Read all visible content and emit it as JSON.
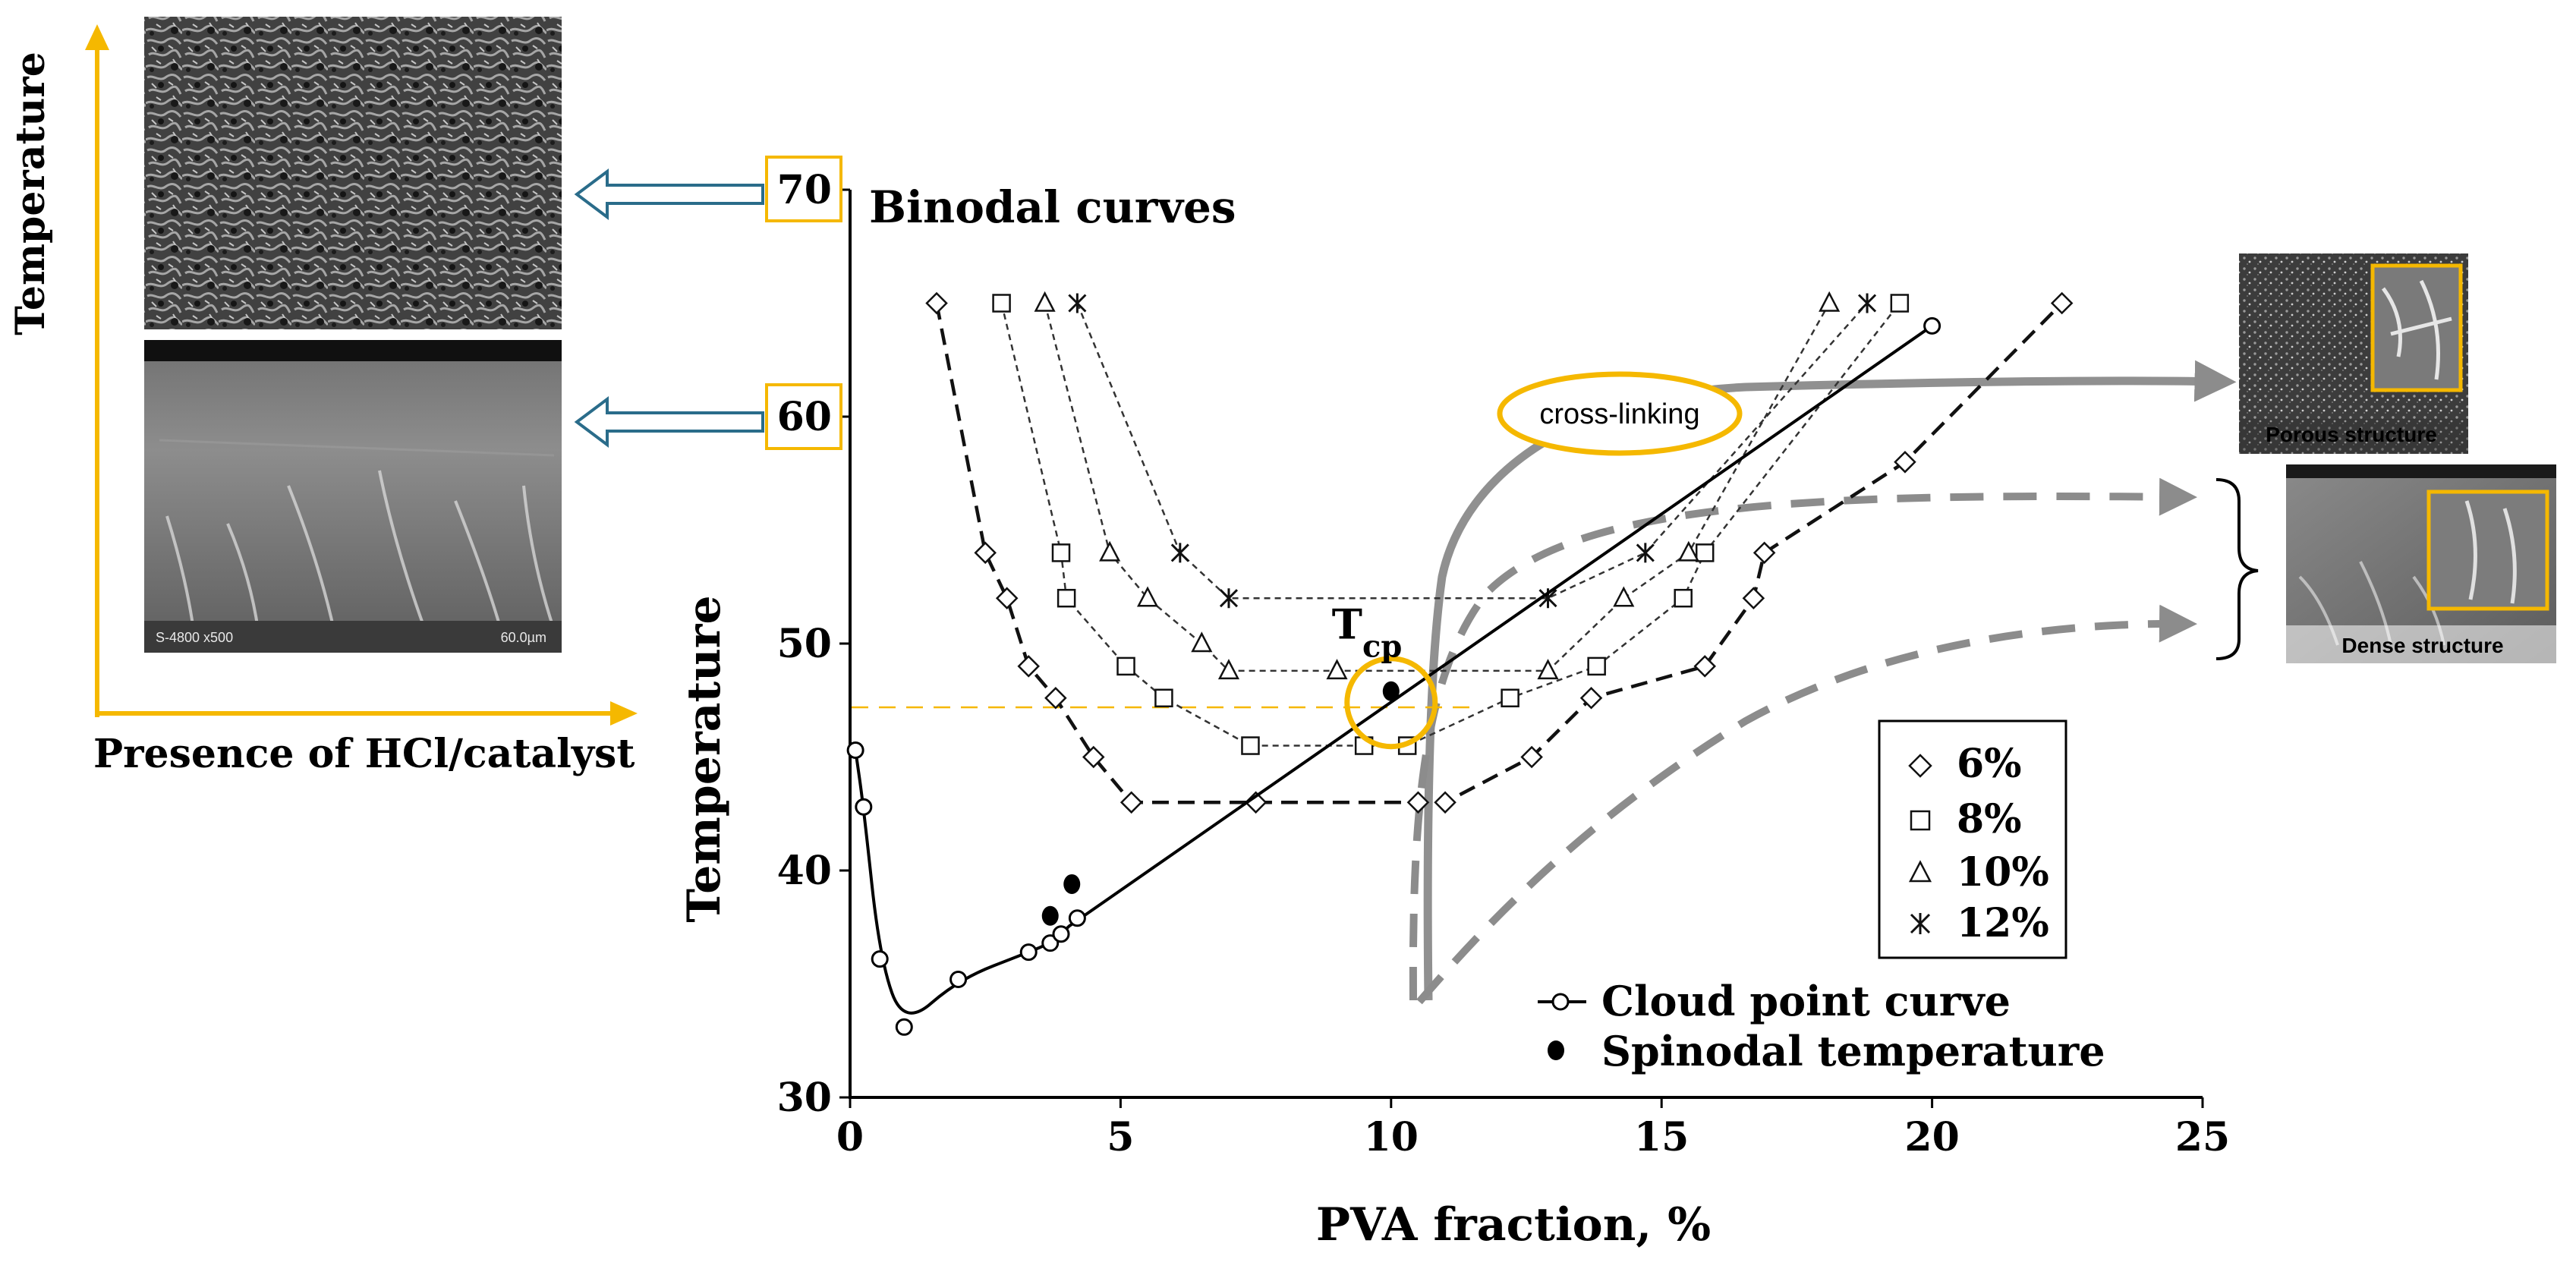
{
  "chart_data": {
    "type": "scatter",
    "title": "Binodal curves",
    "xlabel": "PVA fraction, %",
    "ylabel": "Temperature",
    "xlim": [
      0,
      25
    ],
    "ylim": [
      30,
      70
    ],
    "xticks": [
      0,
      5,
      10,
      15,
      20,
      25
    ],
    "yticks": [
      30,
      40,
      50,
      60,
      70
    ],
    "grid": false,
    "binodal_legend": {
      "placement": "right-middle",
      "entries": [
        {
          "key": "6",
          "marker": "diamond",
          "label": "6%"
        },
        {
          "key": "8",
          "marker": "square",
          "label": "8%"
        },
        {
          "key": "10",
          "marker": "triangle",
          "label": "10%"
        },
        {
          "key": "12",
          "marker": "asterisk",
          "label": "12%"
        }
      ]
    },
    "curve_legend": {
      "placement": "bottom-right",
      "entries": [
        {
          "key": "cloud",
          "marker": "open-circle-line",
          "label": "Cloud point curve"
        },
        {
          "key": "spinodal",
          "marker": "filled-circle",
          "label": "Spinodal temperature"
        }
      ]
    },
    "binodal_series": [
      {
        "name": "6%",
        "marker": "diamond",
        "color": "#111111",
        "dash": "long",
        "x": [
          1.6,
          2.5,
          2.9,
          3.3,
          3.8,
          4.5,
          5.2,
          7.5,
          10.5,
          11.0,
          12.6,
          13.7,
          15.8,
          16.7,
          16.9,
          19.5,
          22.4
        ],
        "y": [
          65,
          54,
          52,
          49,
          47.6,
          45,
          43,
          43,
          43,
          43,
          45,
          47.6,
          49,
          52,
          54,
          58,
          65
        ]
      },
      {
        "name": "8%",
        "marker": "square",
        "color": "#333333",
        "dash": "short",
        "x": [
          2.8,
          3.9,
          4.0,
          5.1,
          5.8,
          7.4,
          9.5,
          10.3,
          12.2,
          13.8,
          15.4,
          15.8,
          19.4
        ],
        "y": [
          65,
          54,
          52,
          49,
          47.6,
          45.5,
          45.5,
          45.5,
          47.6,
          49,
          52,
          54,
          65
        ]
      },
      {
        "name": "10%",
        "marker": "triangle",
        "color": "#333333",
        "dash": "short",
        "x": [
          3.6,
          4.8,
          5.5,
          6.5,
          7.0,
          9.0,
          12.9,
          14.3,
          15.5,
          18.1
        ],
        "y": [
          65,
          54,
          52,
          50,
          48.8,
          48.8,
          48.8,
          52,
          54,
          65
        ]
      },
      {
        "name": "12%",
        "marker": "asterisk",
        "color": "#333333",
        "dash": "short",
        "x": [
          4.2,
          6.1,
          7.0,
          12.9,
          14.7,
          18.8
        ],
        "y": [
          65,
          54,
          52,
          52,
          54,
          65
        ]
      }
    ],
    "cloud_point_curve": {
      "x": [
        0.1,
        0.25,
        0.55,
        1.0,
        2.0,
        3.3,
        3.7,
        3.9,
        4.2,
        20.0
      ],
      "y": [
        45.3,
        42.8,
        36.1,
        33.1,
        35.2,
        36.4,
        36.8,
        37.2,
        37.9,
        64
      ]
    },
    "spinodal_points": {
      "x": [
        3.7,
        4.1,
        10.0
      ],
      "y": [
        38.0,
        39.4,
        47.9
      ]
    },
    "tcp": {
      "label": "T",
      "subscript": "cp",
      "x": 10.0,
      "y": 47.2
    },
    "annotations": {
      "cross_linking": "cross-linking",
      "porous": "Porous structure",
      "dense": "Dense structure",
      "left_axis_y": "Temperature",
      "left_axis_x": "Presence of HCl/catalyst",
      "sem_label_top": "S-4800 x500",
      "sem_label_scale": "60.0µm"
    },
    "colors": {
      "accent": "#f5b800",
      "arrow_blue": "#2a6c8a",
      "cross_link_curve": "#909090",
      "dense_curve": "#8c8c8c",
      "ink": "#000000"
    }
  }
}
